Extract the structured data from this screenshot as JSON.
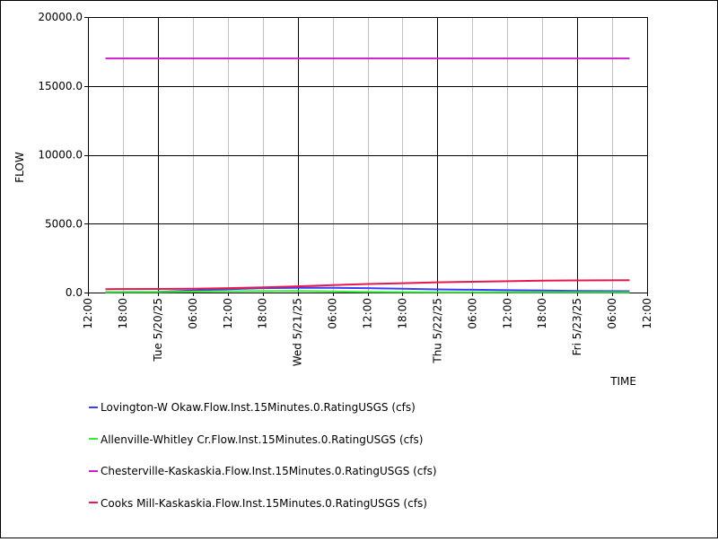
{
  "chart_data": {
    "type": "line",
    "xlabel": "TIME",
    "ylabel": "FLOW",
    "ylim": [
      0,
      20000
    ],
    "yticks": [
      "0.0",
      "5000.0",
      "10000.0",
      "15000.0",
      "20000.0"
    ],
    "xlim": [
      "2025-05-19 12:00",
      "2025-05-23 12:00"
    ],
    "xticks": [
      {
        "t": "2025-05-19 12:00",
        "label": "12:00",
        "major": false
      },
      {
        "t": "2025-05-19 18:00",
        "label": "18:00",
        "major": false
      },
      {
        "t": "2025-05-20 00:00",
        "label": "Tue 5/20/25",
        "major": true
      },
      {
        "t": "2025-05-20 06:00",
        "label": "06:00",
        "major": false
      },
      {
        "t": "2025-05-20 12:00",
        "label": "12:00",
        "major": false
      },
      {
        "t": "2025-05-20 18:00",
        "label": "18:00",
        "major": false
      },
      {
        "t": "2025-05-21 00:00",
        "label": "Wed 5/21/25",
        "major": true
      },
      {
        "t": "2025-05-21 06:00",
        "label": "06:00",
        "major": false
      },
      {
        "t": "2025-05-21 12:00",
        "label": "12:00",
        "major": false
      },
      {
        "t": "2025-05-21 18:00",
        "label": "18:00",
        "major": false
      },
      {
        "t": "2025-05-22 00:00",
        "label": "Thu 5/22/25",
        "major": true
      },
      {
        "t": "2025-05-22 06:00",
        "label": "06:00",
        "major": false
      },
      {
        "t": "2025-05-22 12:00",
        "label": "12:00",
        "major": false
      },
      {
        "t": "2025-05-22 18:00",
        "label": "18:00",
        "major": false
      },
      {
        "t": "2025-05-23 00:00",
        "label": "Fri 5/23/25",
        "major": true
      },
      {
        "t": "2025-05-23 06:00",
        "label": "06:00",
        "major": false
      },
      {
        "t": "2025-05-23 12:00",
        "label": "12:00",
        "major": false
      }
    ],
    "grid": true,
    "legend": "bottom",
    "series": [
      {
        "name": "Lovington-W Okaw.Flow.Inst.15Minutes.0.RatingUSGS (cfs)",
        "color": "#3c3cff",
        "points": [
          [
            "2025-05-19 15:00",
            30
          ],
          [
            "2025-05-20 00:00",
            50
          ],
          [
            "2025-05-20 06:00",
            150
          ],
          [
            "2025-05-20 12:00",
            250
          ],
          [
            "2025-05-20 18:00",
            320
          ],
          [
            "2025-05-21 00:00",
            340
          ],
          [
            "2025-05-21 06:00",
            340
          ],
          [
            "2025-05-21 12:00",
            320
          ],
          [
            "2025-05-21 18:00",
            280
          ],
          [
            "2025-05-22 00:00",
            230
          ],
          [
            "2025-05-22 06:00",
            200
          ],
          [
            "2025-05-22 12:00",
            170
          ],
          [
            "2025-05-22 18:00",
            150
          ],
          [
            "2025-05-23 00:00",
            120
          ],
          [
            "2025-05-23 09:00",
            100
          ]
        ]
      },
      {
        "name": "Allenville-Whitley Cr.Flow.Inst.15Minutes.0.RatingUSGS (cfs)",
        "color": "#33ee33",
        "points": [
          [
            "2025-05-19 15:00",
            20
          ],
          [
            "2025-05-20 00:00",
            30
          ],
          [
            "2025-05-20 12:00",
            100
          ],
          [
            "2025-05-21 00:00",
            120
          ],
          [
            "2025-05-21 06:00",
            80
          ],
          [
            "2025-05-21 12:00",
            40
          ],
          [
            "2025-05-22 00:00",
            20
          ],
          [
            "2025-05-23 09:00",
            10
          ]
        ]
      },
      {
        "name": "Chesterville-Kaskaskia.Flow.Inst.15Minutes.0.RatingUSGS (cfs)",
        "color": "#cc22cc",
        "points": [
          [
            "2025-05-19 15:00",
            17000
          ],
          [
            "2025-05-23 09:00",
            17000
          ]
        ]
      },
      {
        "name": "Cooks Mill-Kaskaskia.Flow.Inst.15Minutes.0.RatingUSGS (cfs)",
        "color": "#e8184a",
        "points": [
          [
            "2025-05-19 15:00",
            250
          ],
          [
            "2025-05-20 00:00",
            260
          ],
          [
            "2025-05-20 06:00",
            280
          ],
          [
            "2025-05-20 12:00",
            320
          ],
          [
            "2025-05-20 18:00",
            380
          ],
          [
            "2025-05-21 00:00",
            450
          ],
          [
            "2025-05-21 06:00",
            540
          ],
          [
            "2025-05-21 12:00",
            620
          ],
          [
            "2025-05-21 18:00",
            680
          ],
          [
            "2025-05-22 00:00",
            740
          ],
          [
            "2025-05-22 06:00",
            780
          ],
          [
            "2025-05-22 12:00",
            820
          ],
          [
            "2025-05-22 18:00",
            860
          ],
          [
            "2025-05-23 00:00",
            880
          ],
          [
            "2025-05-23 09:00",
            900
          ]
        ]
      }
    ]
  }
}
